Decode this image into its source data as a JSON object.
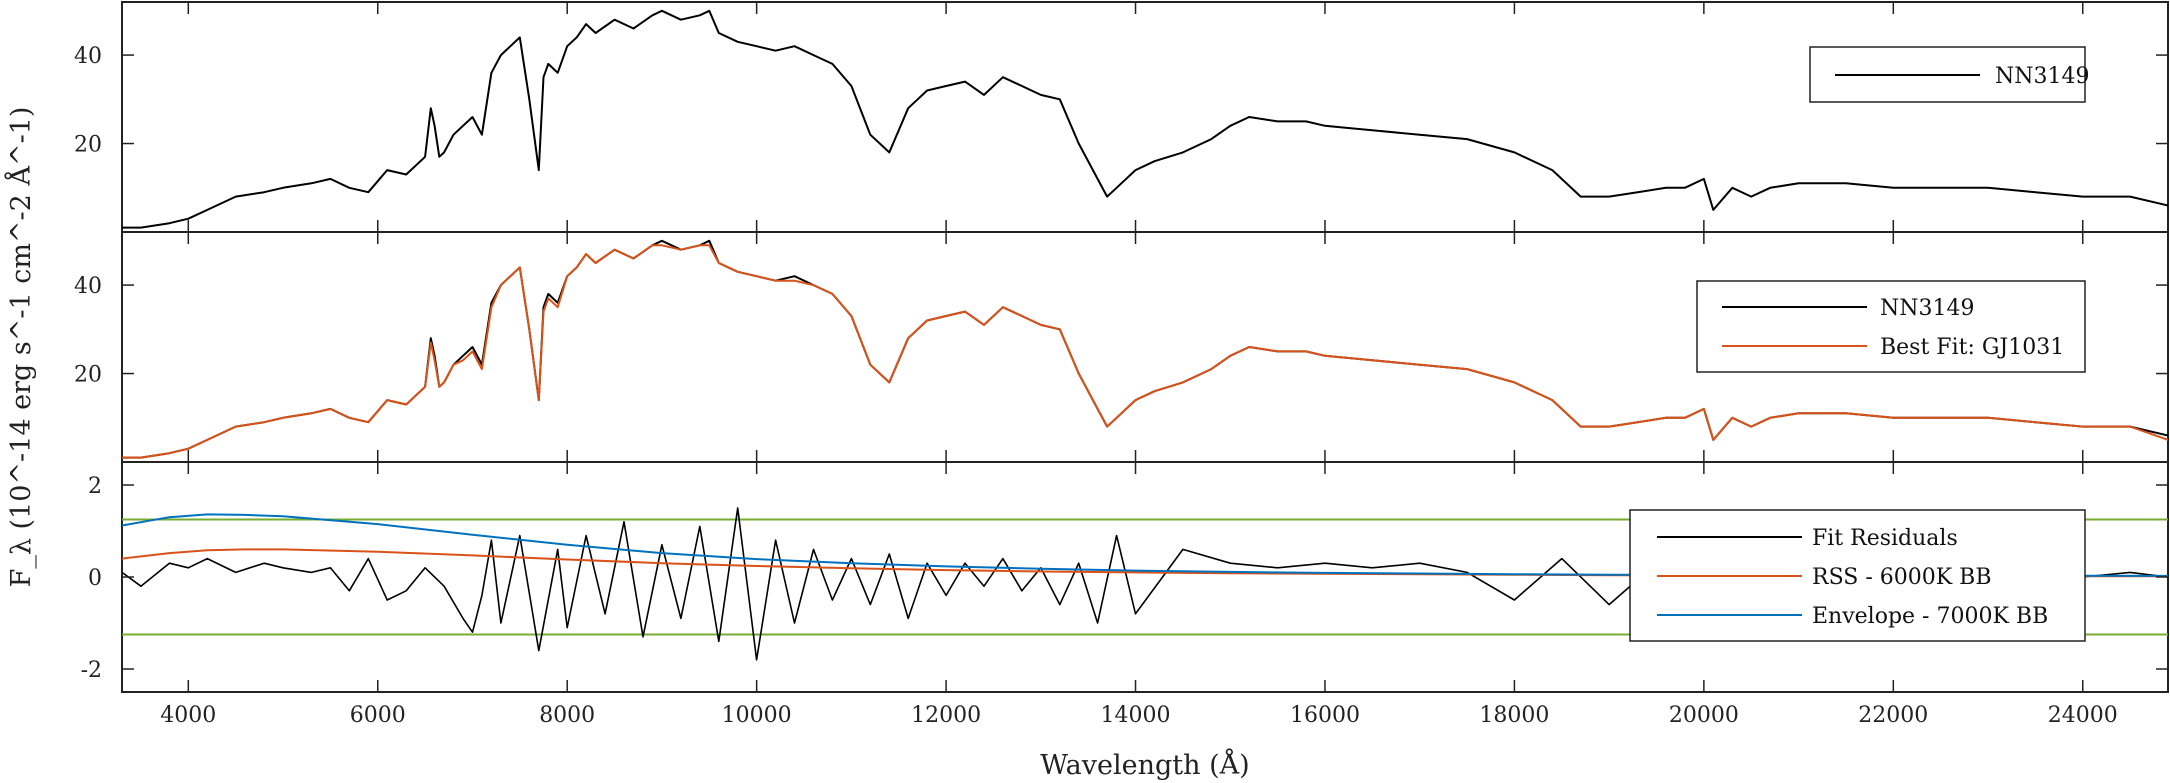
{
  "chart_data": [
    {
      "type": "line",
      "panel": "top",
      "ylim": [
        0,
        52
      ],
      "xlim": [
        3300,
        24900
      ],
      "yticks": [
        20,
        40
      ],
      "ytick_labels": [
        "20",
        "40"
      ],
      "legend": {
        "placement": "top-right",
        "entries": [
          "NN3149"
        ]
      },
      "series": [
        {
          "name": "NN3149",
          "color": "#000000",
          "x": [
            3300,
            3500,
            3800,
            4000,
            4200,
            4500,
            4800,
            5000,
            5300,
            5500,
            5700,
            5900,
            6100,
            6300,
            6500,
            6560,
            6600,
            6650,
            6700,
            6800,
            6900,
            7000,
            7100,
            7200,
            7300,
            7400,
            7500,
            7600,
            7700,
            7750,
            7800,
            7900,
            8000,
            8100,
            8200,
            8300,
            8500,
            8700,
            8900,
            9000,
            9200,
            9400,
            9500,
            9600,
            9800,
            10000,
            10200,
            10400,
            10600,
            10800,
            11000,
            11200,
            11400,
            11600,
            11800,
            12000,
            12200,
            12400,
            12600,
            12800,
            13000,
            13200,
            13400,
            13600,
            13700,
            13800,
            14000,
            14200,
            14500,
            14800,
            15000,
            15200,
            15500,
            15800,
            16000,
            16500,
            17000,
            17500,
            18000,
            18400,
            18700,
            19000,
            19300,
            19600,
            19800,
            20000,
            20100,
            20300,
            20500,
            20700,
            21000,
            21500,
            22000,
            22500,
            23000,
            23500,
            24000,
            24500,
            24900
          ],
          "y": [
            1,
            1,
            2,
            3,
            5,
            8,
            9,
            10,
            11,
            12,
            10,
            9,
            14,
            13,
            17,
            28,
            24,
            17,
            18,
            22,
            24,
            26,
            22,
            36,
            40,
            42,
            44,
            30,
            14,
            35,
            38,
            36,
            42,
            44,
            47,
            45,
            48,
            46,
            49,
            50,
            48,
            49,
            50,
            45,
            43,
            42,
            41,
            42,
            40,
            38,
            33,
            22,
            18,
            28,
            32,
            33,
            34,
            31,
            35,
            33,
            31,
            30,
            20,
            12,
            8,
            10,
            14,
            16,
            18,
            21,
            24,
            26,
            25,
            25,
            24,
            23,
            22,
            21,
            18,
            14,
            8,
            8,
            9,
            10,
            10,
            12,
            5,
            10,
            8,
            10,
            11,
            11,
            10,
            10,
            10,
            9,
            8,
            8,
            6
          ]
        }
      ]
    },
    {
      "type": "line",
      "panel": "middle",
      "ylim": [
        0,
        52
      ],
      "xlim": [
        3300,
        24900
      ],
      "yticks": [
        20,
        40
      ],
      "ytick_labels": [
        "20",
        "40"
      ],
      "legend": {
        "placement": "top-right",
        "entries": [
          "NN3149",
          "Best Fit: GJ1031"
        ]
      },
      "series": [
        {
          "name": "NN3149",
          "color": "#000000",
          "x": [
            3300,
            3500,
            3800,
            4000,
            4200,
            4500,
            4800,
            5000,
            5300,
            5500,
            5700,
            5900,
            6100,
            6300,
            6500,
            6560,
            6600,
            6650,
            6700,
            6800,
            6900,
            7000,
            7100,
            7200,
            7300,
            7400,
            7500,
            7600,
            7700,
            7750,
            7800,
            7900,
            8000,
            8100,
            8200,
            8300,
            8500,
            8700,
            8900,
            9000,
            9200,
            9400,
            9500,
            9600,
            9800,
            10000,
            10200,
            10400,
            10600,
            10800,
            11000,
            11200,
            11400,
            11600,
            11800,
            12000,
            12200,
            12400,
            12600,
            12800,
            13000,
            13200,
            13400,
            13600,
            13700,
            13800,
            14000,
            14200,
            14500,
            14800,
            15000,
            15200,
            15500,
            15800,
            16000,
            16500,
            17000,
            17500,
            18000,
            18400,
            18700,
            19000,
            19300,
            19600,
            19800,
            20000,
            20100,
            20300,
            20500,
            20700,
            21000,
            21500,
            22000,
            22500,
            23000,
            23500,
            24000,
            24500,
            24900
          ],
          "y": [
            1,
            1,
            2,
            3,
            5,
            8,
            9,
            10,
            11,
            12,
            10,
            9,
            14,
            13,
            17,
            28,
            24,
            17,
            18,
            22,
            24,
            26,
            22,
            36,
            40,
            42,
            44,
            30,
            14,
            35,
            38,
            36,
            42,
            44,
            47,
            45,
            48,
            46,
            49,
            50,
            48,
            49,
            50,
            45,
            43,
            42,
            41,
            42,
            40,
            38,
            33,
            22,
            18,
            28,
            32,
            33,
            34,
            31,
            35,
            33,
            31,
            30,
            20,
            12,
            8,
            10,
            14,
            16,
            18,
            21,
            24,
            26,
            25,
            25,
            24,
            23,
            22,
            21,
            18,
            14,
            8,
            8,
            9,
            10,
            10,
            12,
            5,
            10,
            8,
            10,
            11,
            11,
            10,
            10,
            10,
            9,
            8,
            8,
            6
          ]
        },
        {
          "name": "Best Fit: GJ1031",
          "color": "#d95319",
          "x": [
            3300,
            3500,
            3800,
            4000,
            4200,
            4500,
            4800,
            5000,
            5300,
            5500,
            5700,
            5900,
            6100,
            6300,
            6500,
            6560,
            6600,
            6650,
            6700,
            6800,
            6900,
            7000,
            7100,
            7200,
            7300,
            7400,
            7500,
            7600,
            7700,
            7750,
            7800,
            7900,
            8000,
            8100,
            8200,
            8300,
            8500,
            8700,
            8900,
            9000,
            9200,
            9400,
            9500,
            9600,
            9800,
            10000,
            10200,
            10400,
            10600,
            10800,
            11000,
            11200,
            11400,
            11600,
            11800,
            12000,
            12200,
            12400,
            12600,
            12800,
            13000,
            13200,
            13400,
            13600,
            13700,
            13800,
            14000,
            14200,
            14500,
            14800,
            15000,
            15200,
            15500,
            15800,
            16000,
            16500,
            17000,
            17500,
            18000,
            18400,
            18700,
            19000,
            19300,
            19600,
            19800,
            20000,
            20100,
            20300,
            20500,
            20700,
            21000,
            21500,
            22000,
            22500,
            23000,
            23500,
            24000,
            24500,
            24900
          ],
          "y": [
            1,
            1,
            2,
            3,
            5,
            8,
            9,
            10,
            11,
            12,
            10,
            9,
            14,
            13,
            17,
            27,
            23,
            17,
            18,
            22,
            23,
            25,
            21,
            35,
            40,
            42,
            44,
            30,
            14,
            34,
            37,
            35,
            42,
            44,
            47,
            45,
            48,
            46,
            49,
            49,
            48,
            49,
            49,
            45,
            43,
            42,
            41,
            41,
            40,
            38,
            33,
            22,
            18,
            28,
            32,
            33,
            34,
            31,
            35,
            33,
            31,
            30,
            20,
            12,
            8,
            10,
            14,
            16,
            18,
            21,
            24,
            26,
            25,
            25,
            24,
            23,
            22,
            21,
            18,
            14,
            8,
            8,
            9,
            10,
            10,
            12,
            5,
            10,
            8,
            10,
            11,
            11,
            10,
            10,
            10,
            9,
            8,
            8,
            5
          ]
        }
      ]
    },
    {
      "type": "line",
      "panel": "bottom",
      "ylim": [
        -2.5,
        2.5
      ],
      "xlim": [
        3300,
        24900
      ],
      "yticks": [
        -2,
        0,
        2
      ],
      "ytick_labels": [
        "-2",
        "0",
        "2"
      ],
      "xticks": [
        4000,
        6000,
        8000,
        10000,
        12000,
        14000,
        16000,
        18000,
        20000,
        22000,
        24000
      ],
      "xtick_labels": [
        "4000",
        "6000",
        "8000",
        "10000",
        "12000",
        "14000",
        "16000",
        "18000",
        "20000",
        "22000",
        "24000"
      ],
      "hlines": {
        "color": "#77ac30",
        "y": [
          1.25,
          -1.25
        ]
      },
      "legend": {
        "placement": "right",
        "entries": [
          "Fit Residuals",
          "RSS - 6000K BB",
          "Envelope - 7000K BB"
        ]
      },
      "series": [
        {
          "name": "Fit Residuals",
          "color": "#000000",
          "x": [
            3300,
            3500,
            3800,
            4000,
            4200,
            4500,
            4800,
            5000,
            5300,
            5500,
            5700,
            5900,
            6100,
            6300,
            6500,
            6700,
            6900,
            7000,
            7100,
            7200,
            7300,
            7500,
            7700,
            7900,
            8000,
            8200,
            8400,
            8600,
            8800,
            9000,
            9200,
            9400,
            9600,
            9800,
            10000,
            10200,
            10400,
            10600,
            10800,
            11000,
            11200,
            11400,
            11600,
            11800,
            12000,
            12200,
            12400,
            12600,
            12800,
            13000,
            13200,
            13400,
            13600,
            13800,
            14000,
            14500,
            15000,
            15500,
            16000,
            16500,
            17000,
            17500,
            18000,
            18500,
            19000,
            19500,
            20000,
            20500,
            21000,
            21500,
            22000,
            22500,
            23000,
            23500,
            24000,
            24500,
            24900
          ],
          "y": [
            0.1,
            -0.2,
            0.3,
            0.2,
            0.4,
            0.1,
            0.3,
            0.2,
            0.1,
            0.2,
            -0.3,
            0.4,
            -0.5,
            -0.3,
            0.2,
            -0.2,
            -0.9,
            -1.2,
            -0.4,
            0.8,
            -1.0,
            0.9,
            -1.6,
            0.6,
            -1.1,
            0.9,
            -0.8,
            1.2,
            -1.3,
            0.7,
            -0.9,
            1.1,
            -1.4,
            1.5,
            -1.8,
            0.8,
            -1.0,
            0.6,
            -0.5,
            0.4,
            -0.6,
            0.5,
            -0.9,
            0.3,
            -0.4,
            0.3,
            -0.2,
            0.4,
            -0.3,
            0.2,
            -0.6,
            0.3,
            -1.0,
            0.9,
            -0.8,
            0.6,
            0.3,
            0.2,
            0.3,
            0.2,
            0.3,
            0.1,
            -0.5,
            0.4,
            -0.6,
            0.3,
            -0.3,
            0.2,
            0.1,
            0.2,
            0.1,
            0.2,
            0.1,
            0.1,
            0.0,
            0.1,
            0.0
          ]
        },
        {
          "name": "RSS - 6000K BB",
          "color": "#d95319",
          "x": [
            3300,
            3800,
            4200,
            4600,
            5000,
            6000,
            7000,
            8000,
            9000,
            10000,
            11000,
            12000,
            13000,
            14000,
            15000,
            16000,
            17000,
            18000,
            19000,
            20000,
            21000,
            22000,
            23000,
            24000,
            24900
          ],
          "y": [
            0.4,
            0.52,
            0.58,
            0.6,
            0.6,
            0.55,
            0.47,
            0.38,
            0.3,
            0.24,
            0.19,
            0.15,
            0.12,
            0.1,
            0.08,
            0.07,
            0.06,
            0.05,
            0.04,
            0.035,
            0.03,
            0.025,
            0.02,
            0.018,
            0.015
          ]
        },
        {
          "name": "Envelope - 7000K BB",
          "color": "#0072bd",
          "x": [
            3300,
            3800,
            4200,
            4600,
            5000,
            6000,
            7000,
            8000,
            9000,
            10000,
            11000,
            12000,
            13000,
            14000,
            15000,
            16000,
            17000,
            18000,
            19000,
            20000,
            21000,
            22000,
            23000,
            24000,
            24900
          ],
          "y": [
            1.12,
            1.3,
            1.36,
            1.35,
            1.32,
            1.15,
            0.92,
            0.7,
            0.52,
            0.39,
            0.3,
            0.23,
            0.18,
            0.14,
            0.11,
            0.09,
            0.075,
            0.06,
            0.05,
            0.045,
            0.04,
            0.035,
            0.03,
            0.027,
            0.025
          ]
        }
      ]
    }
  ],
  "axes": {
    "xlabel": "Wavelength (Å)",
    "ylabel": "F_λ (10^-14 erg s^-1 cm^-2 Å^-1)"
  },
  "colors": {
    "black": "#000000",
    "fit": "#d95319",
    "envelope": "#0072bd",
    "threshold": "#77ac30",
    "masked": "#888888"
  }
}
